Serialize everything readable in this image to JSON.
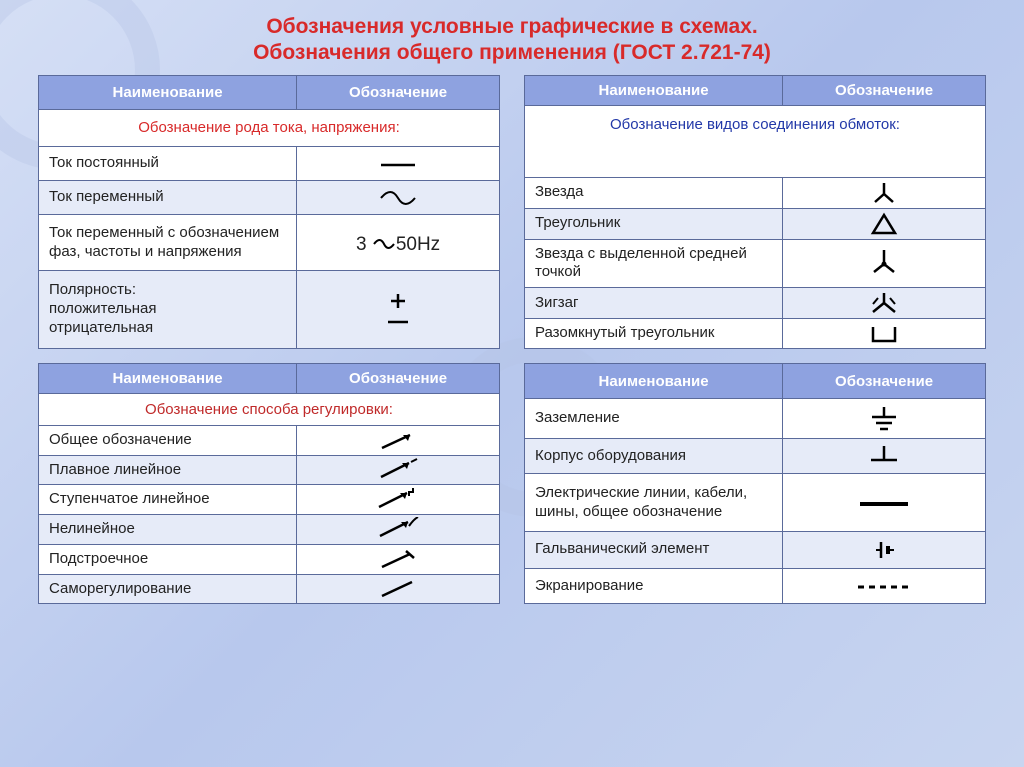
{
  "colors": {
    "title": "#d82a2a",
    "header_bg": "#8ea2e0",
    "header_fg": "#ffffff",
    "border": "#5a6a9a",
    "alt_row": "#e6ebf8",
    "sub1": "#d82a2a",
    "sub2": "#2238a8",
    "sub3": "#c02a2a",
    "sub4": "#2238a8"
  },
  "title_line1": "Обозначения условные графические в схемах.",
  "title_line2": "Обозначения общего применения (ГОСТ 2.721-74)",
  "header_name": "Наименование",
  "header_sym": "Обозначение",
  "t1": {
    "sub": "Обозначение рода тока, напряжения:",
    "rows": [
      {
        "n": "Ток  постоянный",
        "s": "dc"
      },
      {
        "n": "Ток переменный",
        "s": "ac"
      },
      {
        "n": "Ток переменный с обозначением фаз, частоты и напряжения",
        "s": "ac3",
        "txt": "3  ～50Hz"
      },
      {
        "n": "Полярность:\nположительная\nотрицательная",
        "s": "pm"
      }
    ]
  },
  "t2": {
    "sub": "Обозначение видов соединения обмоток:",
    "rows": [
      {
        "n": "Звезда",
        "s": "star"
      },
      {
        "n": "Треугольник",
        "s": "tri"
      },
      {
        "n": "Звезда с выделенной средней точкой",
        "s": "starN"
      },
      {
        "n": "Зигзаг",
        "s": "zig"
      },
      {
        "n": "Разомкнутый треугольник",
        "s": "opentri"
      }
    ]
  },
  "t3": {
    "sub": "Обозначение способа регулировки:",
    "rows": [
      {
        "n": "Общее обозначение",
        "s": "arr"
      },
      {
        "n": "Плавное линейное",
        "s": "arr_lin"
      },
      {
        "n": "Ступенчатое линейное",
        "s": "arr_step"
      },
      {
        "n": "Нелинейное",
        "s": "arr_nl"
      },
      {
        "n": "Подстроечное",
        "s": "arr_trim"
      },
      {
        "n": "Саморегулирование",
        "s": "arr_self"
      }
    ]
  },
  "t4": {
    "rows": [
      {
        "n": "Заземление",
        "s": "gnd"
      },
      {
        "n": "Корпус оборудования",
        "s": "chassis"
      },
      {
        "n": "Электрические линии, кабели, шины, общее обозначение",
        "s": "bus"
      },
      {
        "n": "Гальванический элемент",
        "s": "cell"
      },
      {
        "n": "Экранирование",
        "s": "shield"
      }
    ]
  }
}
